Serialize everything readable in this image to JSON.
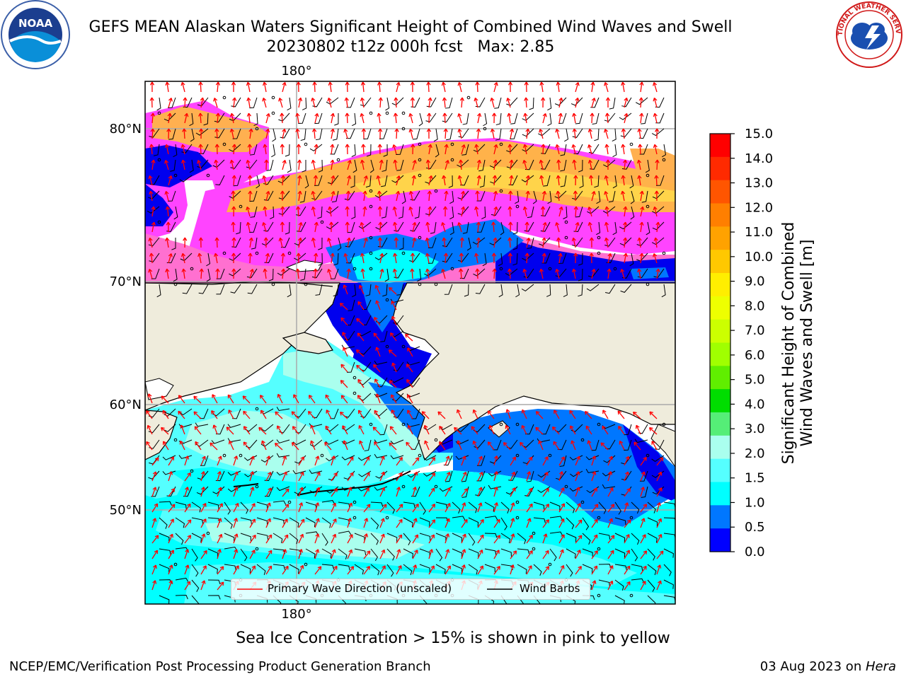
{
  "header": {
    "title_line1": "GEFS MEAN Alaskan Waters Significant Height of Combined Wind Waves and Swell",
    "title_line2": "20230802 t12z 000h fcst   Max: 2.85"
  },
  "logos": {
    "left": {
      "name": "noaa-logo",
      "text": "NOAA"
    },
    "right": {
      "name": "national-weather-service-logo",
      "text": "NATIONAL WEATHER SERVICE"
    }
  },
  "map": {
    "lon_labels": {
      "top": "180°",
      "bottom": "180°"
    },
    "lat_labels": [
      "80°N",
      "70°N",
      "60°N",
      "50°N"
    ],
    "land_color": "#efecdc",
    "grid": true
  },
  "colorbar": {
    "label_line1": "Significant Height of Combined",
    "label_line2": "Wind Waves and Swell [m]",
    "ticks": [
      "15.0",
      "14.0",
      "13.0",
      "12.0",
      "11.0",
      "10.0",
      "9.0",
      "8.0",
      "7.0",
      "6.0",
      "5.0",
      "4.0",
      "3.0",
      "2.0",
      "1.5",
      "1.0",
      "0.5",
      "0.0"
    ],
    "colors_top_to_bottom": [
      "#ff0000",
      "#ff2a00",
      "#ff5500",
      "#ff7f00",
      "#ffa200",
      "#ffc800",
      "#ffee00",
      "#eeff00",
      "#ccff00",
      "#a0ff00",
      "#60ee00",
      "#00dd00",
      "#55ee77",
      "#aaffee",
      "#55ffff",
      "#00ffff",
      "#0077ff",
      "#0000ff"
    ]
  },
  "legend": {
    "wave_label": "Primary Wave Direction (unscaled)",
    "barb_label": "Wind Barbs",
    "wave_color": "#ff0000",
    "barb_color": "#000000"
  },
  "footer": {
    "note": "Sea Ice Concentration > 15% is shown in pink to yellow",
    "left": "NCEP/EMC/Verification Post Processing Product Generation Branch",
    "right_prefix": "03 Aug 2023 on ",
    "right_italic": "Hera"
  },
  "colors": {
    "ice_low": "#ff44ff",
    "ice_high": "#ffc800",
    "ice_mid": "#ff8aa0"
  }
}
